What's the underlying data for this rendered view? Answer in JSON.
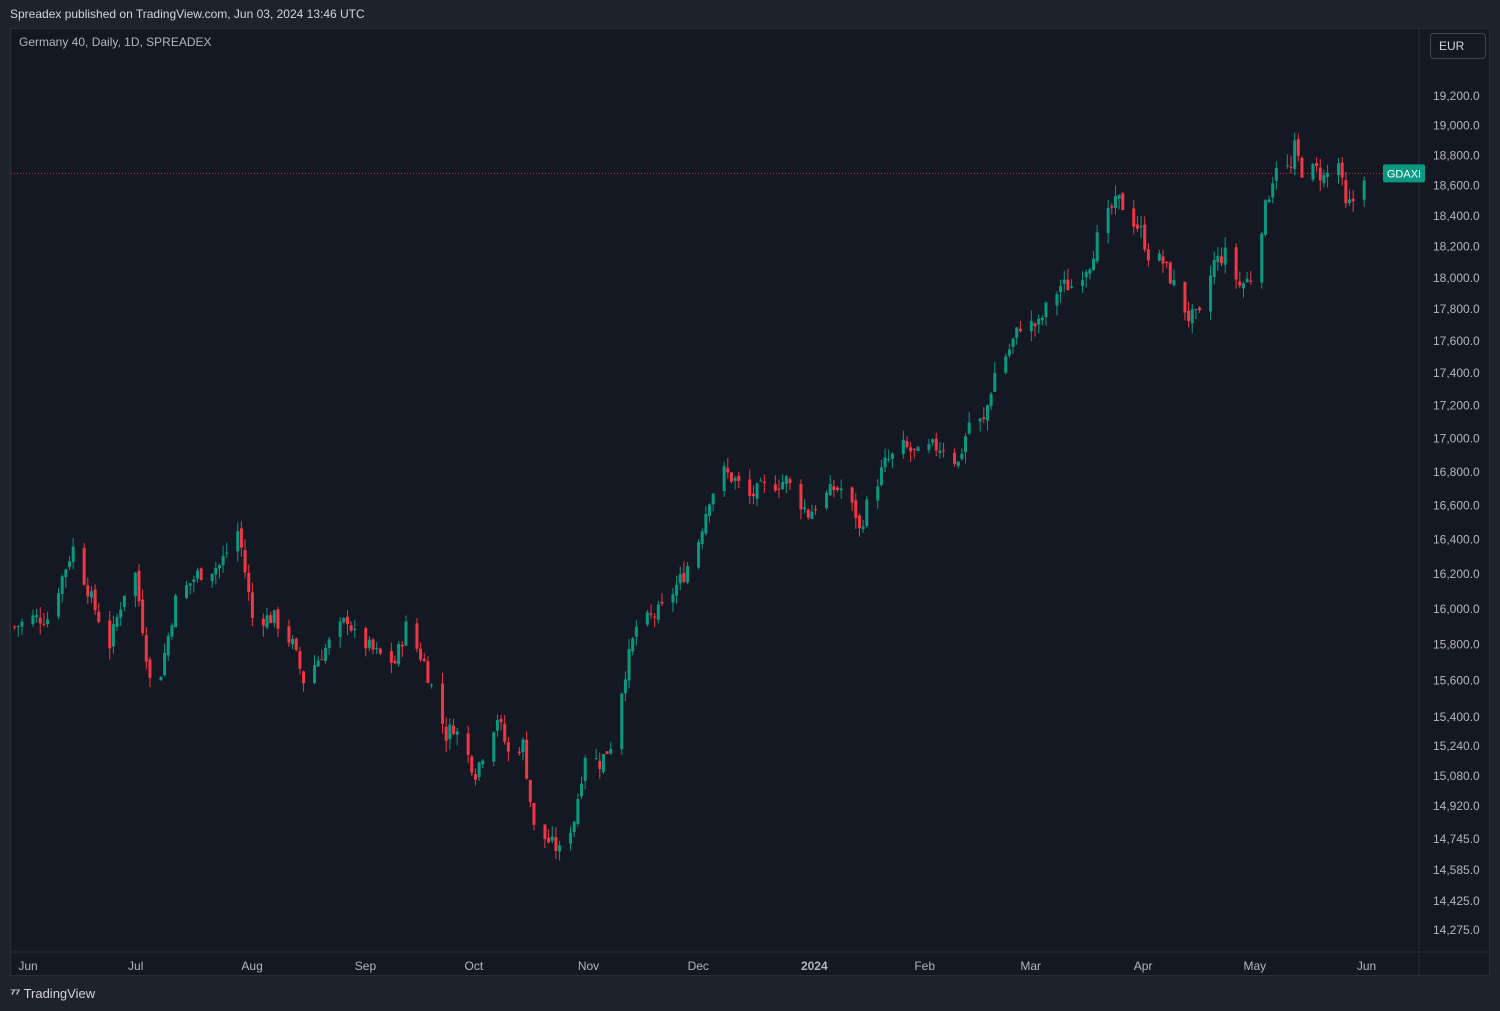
{
  "header": {
    "published": "Spreadex published on TradingView.com, Jun 03, 2024 13:46 UTC"
  },
  "legend": {
    "symbol": "Germany 40, Daily, 1D, SPREADEX"
  },
  "currency": "EUR",
  "footer": {
    "brand": "TradingView"
  },
  "colors": {
    "up": "#089981",
    "down": "#f23645",
    "background": "#141823",
    "badge": "#089981"
  },
  "chart_data": {
    "type": "candlestick",
    "symbol": "GDAXI",
    "last_price": 18680,
    "y_ticks": [
      19200,
      19000,
      18800,
      18600,
      18400,
      18200,
      18000,
      17800,
      17600,
      17400,
      17200,
      17000,
      16800,
      16600,
      16400,
      16200,
      16000,
      15800,
      15600,
      15400,
      15240,
      15080,
      14920,
      14745,
      14585,
      14425,
      14275
    ],
    "y_tick_labels": [
      "19,200.0",
      "19,000.0",
      "18,800.0",
      "18,600.0",
      "18,400.0",
      "18,200.0",
      "18,000.0",
      "17,800.0",
      "17,600.0",
      "17,400.0",
      "17,200.0",
      "17,000.0",
      "16,800.0",
      "16,600.0",
      "16,400.0",
      "16,200.0",
      "16,000.0",
      "15,800.0",
      "15,600.0",
      "15,400.0",
      "15,240.0",
      "15,080.0",
      "14,920.0",
      "14,745.0",
      "14,585.0",
      "14,425.0",
      "14,275.0"
    ],
    "x_labels": [
      {
        "label": "Jun",
        "date": "2023-06-01"
      },
      {
        "label": "Jul",
        "date": "2023-07-01"
      },
      {
        "label": "Aug",
        "date": "2023-08-01"
      },
      {
        "label": "Sep",
        "date": "2023-09-01"
      },
      {
        "label": "Oct",
        "date": "2023-10-01"
      },
      {
        "label": "Nov",
        "date": "2023-11-01"
      },
      {
        "label": "Dec",
        "date": "2023-12-01"
      },
      {
        "label": "2024",
        "date": "2024-01-01"
      },
      {
        "label": "Feb",
        "date": "2024-02-01"
      },
      {
        "label": "Mar",
        "date": "2024-03-01"
      },
      {
        "label": "Apr",
        "date": "2024-04-01"
      },
      {
        "label": "May",
        "date": "2024-05-01"
      },
      {
        "label": "Jun",
        "date": "2024-06-01"
      }
    ],
    "x_range": [
      "2023-05-30",
      "2024-06-18"
    ],
    "y_scale": "log",
    "y_range": [
      14180,
      19400
    ],
    "closes": [
      {
        "date": "2023-05-31",
        "close": 15900
      },
      {
        "date": "2023-06-05",
        "close": 15950
      },
      {
        "date": "2023-06-09",
        "close": 15950
      },
      {
        "date": "2023-06-15",
        "close": 16300
      },
      {
        "date": "2023-06-16",
        "close": 16350
      },
      {
        "date": "2023-06-22",
        "close": 16000
      },
      {
        "date": "2023-06-26",
        "close": 15800
      },
      {
        "date": "2023-06-30",
        "close": 16100
      },
      {
        "date": "2023-07-03",
        "close": 16200
      },
      {
        "date": "2023-07-07",
        "close": 15600
      },
      {
        "date": "2023-07-10",
        "close": 15650
      },
      {
        "date": "2023-07-12",
        "close": 15850
      },
      {
        "date": "2023-07-14",
        "close": 16050
      },
      {
        "date": "2023-07-20",
        "close": 16200
      },
      {
        "date": "2023-07-26",
        "close": 16250
      },
      {
        "date": "2023-07-31",
        "close": 16450
      },
      {
        "date": "2023-08-01",
        "close": 16350
      },
      {
        "date": "2023-08-04",
        "close": 15950
      },
      {
        "date": "2023-08-10",
        "close": 15950
      },
      {
        "date": "2023-08-15",
        "close": 15800
      },
      {
        "date": "2023-08-18",
        "close": 15600
      },
      {
        "date": "2023-08-23",
        "close": 15750
      },
      {
        "date": "2023-08-30",
        "close": 15950
      },
      {
        "date": "2023-09-01",
        "close": 15850
      },
      {
        "date": "2023-09-07",
        "close": 15750
      },
      {
        "date": "2023-09-12",
        "close": 15700
      },
      {
        "date": "2023-09-15",
        "close": 15900
      },
      {
        "date": "2023-09-20",
        "close": 15700
      },
      {
        "date": "2023-09-26",
        "close": 15300
      },
      {
        "date": "2023-09-28",
        "close": 15350
      },
      {
        "date": "2023-10-04",
        "close": 15100
      },
      {
        "date": "2023-10-06",
        "close": 15200
      },
      {
        "date": "2023-10-10",
        "close": 15400
      },
      {
        "date": "2023-10-13",
        "close": 15200
      },
      {
        "date": "2023-10-17",
        "close": 15250
      },
      {
        "date": "2023-10-20",
        "close": 14800
      },
      {
        "date": "2023-10-23",
        "close": 14750
      },
      {
        "date": "2023-10-26",
        "close": 14700
      },
      {
        "date": "2023-10-27",
        "close": 14680
      },
      {
        "date": "2023-10-31",
        "close": 14850
      },
      {
        "date": "2023-11-03",
        "close": 15200
      },
      {
        "date": "2023-11-07",
        "close": 15150
      },
      {
        "date": "2023-11-10",
        "close": 15250
      },
      {
        "date": "2023-11-14",
        "close": 15650
      },
      {
        "date": "2023-11-17",
        "close": 15900
      },
      {
        "date": "2023-11-21",
        "close": 15950
      },
      {
        "date": "2023-11-24",
        "close": 16000
      },
      {
        "date": "2023-11-30",
        "close": 16200
      },
      {
        "date": "2023-12-04",
        "close": 16400
      },
      {
        "date": "2023-12-07",
        "close": 16650
      },
      {
        "date": "2023-12-11",
        "close": 16800
      },
      {
        "date": "2023-12-14",
        "close": 16750
      },
      {
        "date": "2023-12-18",
        "close": 16650
      },
      {
        "date": "2023-12-21",
        "close": 16700
      },
      {
        "date": "2023-12-28",
        "close": 16750
      },
      {
        "date": "2024-01-03",
        "close": 16550
      },
      {
        "date": "2024-01-05",
        "close": 16600
      },
      {
        "date": "2024-01-10",
        "close": 16700
      },
      {
        "date": "2024-01-12",
        "close": 16700
      },
      {
        "date": "2024-01-16",
        "close": 16550
      },
      {
        "date": "2024-01-17",
        "close": 16450
      },
      {
        "date": "2024-01-19",
        "close": 16600
      },
      {
        "date": "2024-01-24",
        "close": 16850
      },
      {
        "date": "2024-01-29",
        "close": 16950
      },
      {
        "date": "2024-02-02",
        "close": 16900
      },
      {
        "date": "2024-02-06",
        "close": 16950
      },
      {
        "date": "2024-02-09",
        "close": 16950
      },
      {
        "date": "2024-02-13",
        "close": 16850
      },
      {
        "date": "2024-02-16",
        "close": 17100
      },
      {
        "date": "2024-02-20",
        "close": 17100
      },
      {
        "date": "2024-02-23",
        "close": 17400
      },
      {
        "date": "2024-02-27",
        "close": 17550
      },
      {
        "date": "2024-03-01",
        "close": 17700
      },
      {
        "date": "2024-03-06",
        "close": 17700
      },
      {
        "date": "2024-03-08",
        "close": 17800
      },
      {
        "date": "2024-03-12",
        "close": 17950
      },
      {
        "date": "2024-03-15",
        "close": 17950
      },
      {
        "date": "2024-03-20",
        "close": 18100
      },
      {
        "date": "2024-03-22",
        "close": 18250
      },
      {
        "date": "2024-03-26",
        "close": 18450
      },
      {
        "date": "2024-03-28",
        "close": 18500
      },
      {
        "date": "2024-04-03",
        "close": 18300
      },
      {
        "date": "2024-04-05",
        "close": 18150
      },
      {
        "date": "2024-04-09",
        "close": 18100
      },
      {
        "date": "2024-04-12",
        "close": 17950
      },
      {
        "date": "2024-04-16",
        "close": 17750
      },
      {
        "date": "2024-04-19",
        "close": 17750
      },
      {
        "date": "2024-04-23",
        "close": 18100
      },
      {
        "date": "2024-04-26",
        "close": 18150
      },
      {
        "date": "2024-04-30",
        "close": 17950
      },
      {
        "date": "2024-05-03",
        "close": 18000
      },
      {
        "date": "2024-05-07",
        "close": 18450
      },
      {
        "date": "2024-05-10",
        "close": 18750
      },
      {
        "date": "2024-05-14",
        "close": 18700
      },
      {
        "date": "2024-05-15",
        "close": 18850
      },
      {
        "date": "2024-05-17",
        "close": 18700
      },
      {
        "date": "2024-05-21",
        "close": 18700
      },
      {
        "date": "2024-05-23",
        "close": 18650
      },
      {
        "date": "2024-05-27",
        "close": 18750
      },
      {
        "date": "2024-05-29",
        "close": 18450
      },
      {
        "date": "2024-05-31",
        "close": 18500
      },
      {
        "date": "2024-06-03",
        "close": 18680
      }
    ]
  }
}
